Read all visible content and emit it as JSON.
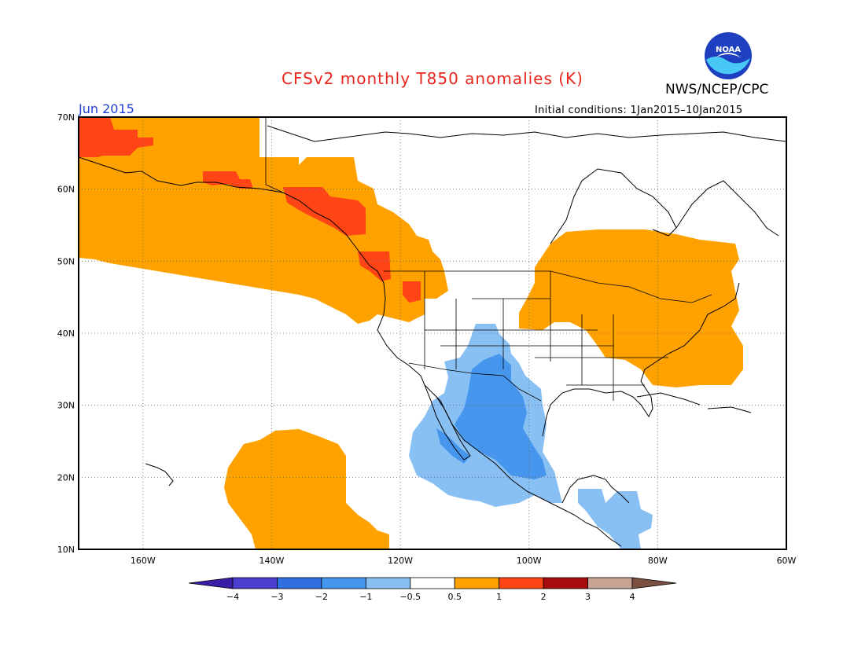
{
  "header": {
    "title": "CFSv2 monthly T850 anomalies (K)",
    "agency": "NWS/NCEP/CPC",
    "logo_text": "NOAA",
    "valid_month": "Jun 2015",
    "initial_conditions": "Initial conditions: 1Jan2015–10Jan2015",
    "title_color": "#e8261c",
    "month_color": "#1f3fd6"
  },
  "map": {
    "lat_labels": [
      "70N",
      "60N",
      "50N",
      "40N",
      "30N",
      "20N",
      "10N"
    ],
    "lon_labels": [
      "160W",
      "140W",
      "120W",
      "100W",
      "80W",
      "60W"
    ],
    "lat_range": [
      10,
      70
    ],
    "lon_range": [
      -170,
      -60
    ],
    "regions": [
      {
        "name": "alaska-nw-canada",
        "level": "warm-0.5-1"
      },
      {
        "name": "siberia-tip",
        "level": "warm-1-2"
      },
      {
        "name": "alaska-peninsula",
        "level": "warm-1-2"
      },
      {
        "name": "bc-coast",
        "level": "warm-1-2"
      },
      {
        "name": "east-us-canada",
        "level": "warm-0.5-1"
      },
      {
        "name": "subtropical-pacific",
        "level": "warm-0.5-1"
      },
      {
        "name": "sw-us-mexico",
        "level": "cool-0.5-1"
      },
      {
        "name": "mexico-core",
        "level": "cool-1-2"
      },
      {
        "name": "central-america",
        "level": "cool-0.5-1"
      }
    ]
  },
  "colorbar": {
    "labels": [
      "−4",
      "−3",
      "−2",
      "−1",
      "−0.5",
      "0.5",
      "1",
      "2",
      "3",
      "4"
    ],
    "colors": [
      "#3a1ea8",
      "#4a3fd0",
      "#2f6fe0",
      "#4596ec",
      "#88c0f4",
      "#ffffff",
      "#ffa200",
      "#ff4515",
      "#a80d0d",
      "#c8a592",
      "#7c5040"
    ]
  }
}
